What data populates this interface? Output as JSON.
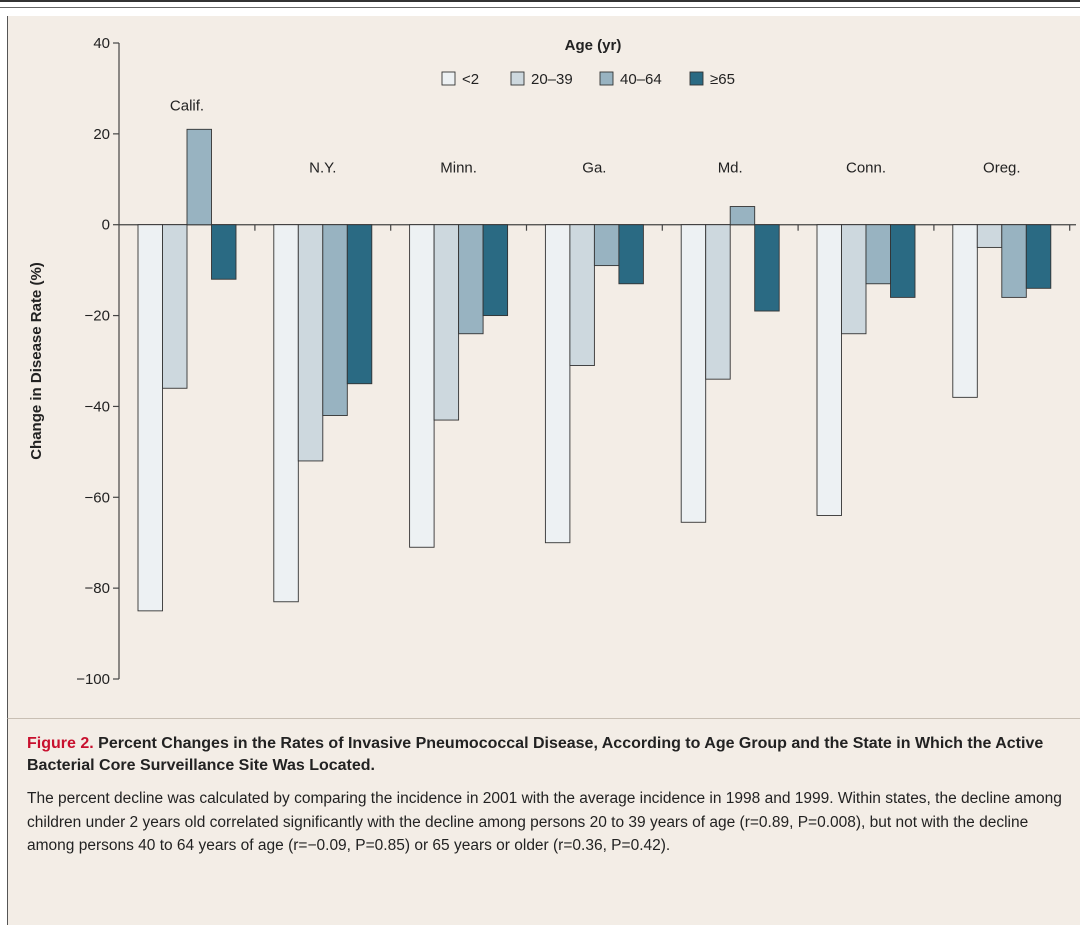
{
  "chart_data": {
    "type": "bar",
    "ylabel": "Change in Disease Rate (%)",
    "ylim": [
      -100,
      40
    ],
    "yticks": [
      40,
      20,
      0,
      -20,
      -40,
      -60,
      -80,
      -100
    ],
    "ytick_labels": [
      "40",
      "20",
      "0",
      "−20",
      "−40",
      "−60",
      "−80",
      "−100"
    ],
    "legend_title": "Age (yr)",
    "legend_placement": "top-center",
    "grid": false,
    "categories": [
      "Calif.",
      "N.Y.",
      "Minn.",
      "Ga.",
      "Md.",
      "Conn.",
      "Oreg."
    ],
    "series": [
      {
        "name": "<2",
        "color": "#edf1f3",
        "values": [
          -85,
          -83,
          -71,
          -70,
          -65.5,
          -64,
          -38
        ]
      },
      {
        "name": "20–39",
        "color": "#cdd8de",
        "values": [
          -36,
          -52,
          -43,
          -31,
          -34,
          -24,
          -5
        ]
      },
      {
        "name": "40–64",
        "color": "#98b3c1",
        "values": [
          21,
          -42,
          -24,
          -9,
          4,
          -13,
          -16
        ]
      },
      {
        "name": "≥65",
        "color": "#2a6a83",
        "values": [
          -12,
          -35,
          -20,
          -13,
          -19,
          -16,
          -14
        ]
      }
    ]
  },
  "caption": {
    "label": "Figure 2.",
    "title": "Percent Changes in the Rates of Invasive Pneumococcal Disease, According to Age Group and the State in Which the Active Bacterial Core Surveillance Site Was Located.",
    "body": "The percent decline was calculated by comparing the incidence in 2001 with the average incidence in 1998 and 1999. Within states, the decline among children under 2 years old correlated significantly with the decline among persons 20 to 39 years of age (r=0.89, P=0.008), but not with the decline among persons 40 to 64 years of age (r=−0.09, P=0.85) or 65 years or older (r=0.36, P=0.42)."
  }
}
